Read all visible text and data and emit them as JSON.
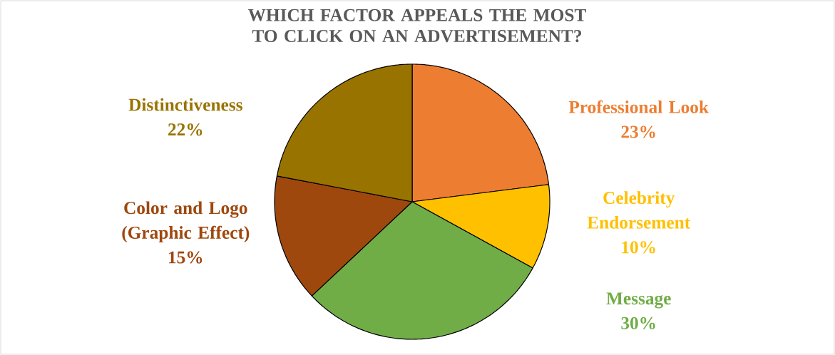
{
  "chart_data": {
    "type": "pie",
    "title": "WHICH FACTOR APPEALS THE MOST TO CLICK ON AN ADVERTISEMENT?",
    "categories": [
      "Professional Look",
      "Celebrity Endorsement",
      "Message",
      "Color and Logo (Graphic Effect)",
      "Distinctiveness"
    ],
    "values": [
      23,
      10,
      30,
      15,
      22
    ],
    "value_labels": [
      "23%",
      "10%",
      "30%",
      "15%",
      "22%"
    ],
    "colors": [
      "#ed7d31",
      "#ffc000",
      "#70ad47",
      "#9e480e",
      "#997300"
    ]
  }
}
